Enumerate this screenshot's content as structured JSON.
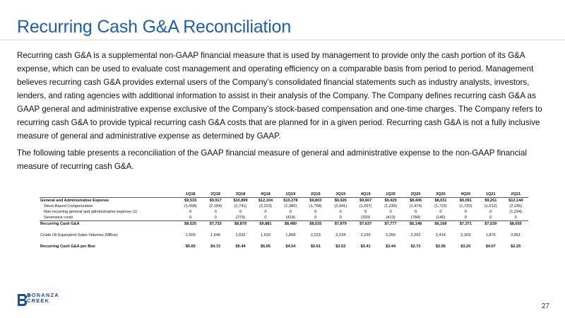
{
  "title": "Recurring Cash G&A Reconciliation",
  "paragraph1": "Recurring cash G&A is a supplemental non-GAAP financial measure that is used by management to provide only the cash portion of its G&A expense, which can be used to evaluate cost management and operating efficiency on a comparable basis from period to period. Management believes recurring cash G&A provides external users of the Company’s consolidated financial statements such as industry analysts, investors, lenders, and rating agencies with additional information to assist in their analysis of the Company. The Company defines recurring cash G&A as GAAP general and administrative expense exclusive of the Company’s stock-based compensation and one-time charges. The Company refers to recurring cash G&A to provide typical recurring cash G&A costs that are planned for in a given period. Recurring cash G&A is not a fully inclusive measure of general and administrative expense as determined by GAAP.",
  "paragraph2": "The following table presents a reconciliation of the GAAP financial measure of general and administrative expense to the non-GAAP financial measure of recurring cash G&A.",
  "table": {
    "periods": [
      "1Q18",
      "2Q18",
      "3Q18",
      "4Q18",
      "1Q19",
      "2Q19",
      "3Q19",
      "4Q19",
      "1Q20",
      "2Q20",
      "3Q20",
      "4Q20",
      "1Q21",
      "2Q21"
    ],
    "rows": [
      {
        "label": "General and Administrative Expense",
        "values": [
          "$9,533",
          "$9,917",
          "$10,899",
          "$12,104",
          "$10,278",
          "$9,803",
          "$9,920",
          "$9,667",
          "$9,429",
          "$8,406",
          "$8,031",
          "$9,091",
          "$9,251",
          "$12,144"
        ]
      },
      {
        "label": "Stock-Based Compensation",
        "values": [
          "(1,008)",
          "(2,184)",
          "(1,741)",
          "(2,223)",
          "(1,380)",
          "(1,768)",
          "(2,041)",
          "(1,697)",
          "(1,239)",
          "(1,474)",
          "(1,723)",
          "(1,720)",
          "(1,612)",
          "(2,195)"
        ]
      },
      {
        "label": "Non-recurring general and administrative expense (1)",
        "values": [
          "0",
          "0",
          "0",
          "0",
          "0",
          "0",
          "0",
          "0",
          "0",
          "0",
          "0",
          "0",
          "0",
          "(1,294)"
        ]
      },
      {
        "label": "Severance costs",
        "values": [
          "0",
          "0",
          "(279)",
          "0",
          "(418)",
          "0",
          "0",
          "(333)",
          "(413)",
          "(784)",
          "(140)",
          "0",
          "0",
          "0"
        ]
      },
      {
        "label": "Recurring Cash G&A",
        "values": [
          "$8,525",
          "$7,733",
          "$8,879",
          "$9,881",
          "$8,480",
          "$8,035",
          "$7,879",
          "$7,637",
          "$7,777",
          "$6,148",
          "$6,168",
          "$7,371",
          "$7,639",
          "$8,655"
        ]
      },
      {
        "label": "Crude Oil Equivalent Sales Volumes (MBoe)",
        "values": [
          "1,509",
          "1,640",
          "1,632",
          "1,633",
          "1,868",
          "2,223",
          "2,234",
          "2,239",
          "2,260",
          "2,262",
          "2,414",
          "2,303",
          "1,876",
          "3,851"
        ]
      },
      {
        "label": "Recurring Cash G&A per Boe",
        "values": [
          "$5.65",
          "$4.72",
          "$5.44",
          "$6.05",
          "$4.54",
          "$3.61",
          "$3.53",
          "$3.41",
          "$3.44",
          "$2.72",
          "$2.56",
          "$3.20",
          "$4.07",
          "$2.25"
        ]
      }
    ]
  },
  "logo": {
    "line1": "BONANZA",
    "line2": "CREEK",
    "color": "#1f4f8f"
  },
  "page_number": "27",
  "colors": {
    "title": "#1f5fa8"
  }
}
